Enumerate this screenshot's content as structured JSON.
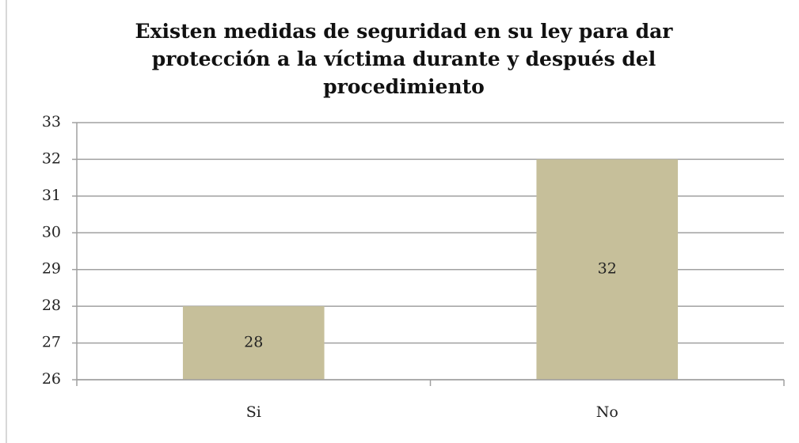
{
  "chart_data": {
    "type": "bar",
    "title": "Existen medidas de seguridad en su ley para dar protección a la víctima durante y después del procedimiento",
    "categories": [
      "Si",
      "No"
    ],
    "values": [
      28,
      32
    ],
    "color": "#c6bf9a",
    "ylim": [
      26,
      33
    ],
    "yticks": [
      26,
      27,
      28,
      29,
      30,
      31,
      32,
      33
    ],
    "grid": true,
    "data_labels": true
  }
}
